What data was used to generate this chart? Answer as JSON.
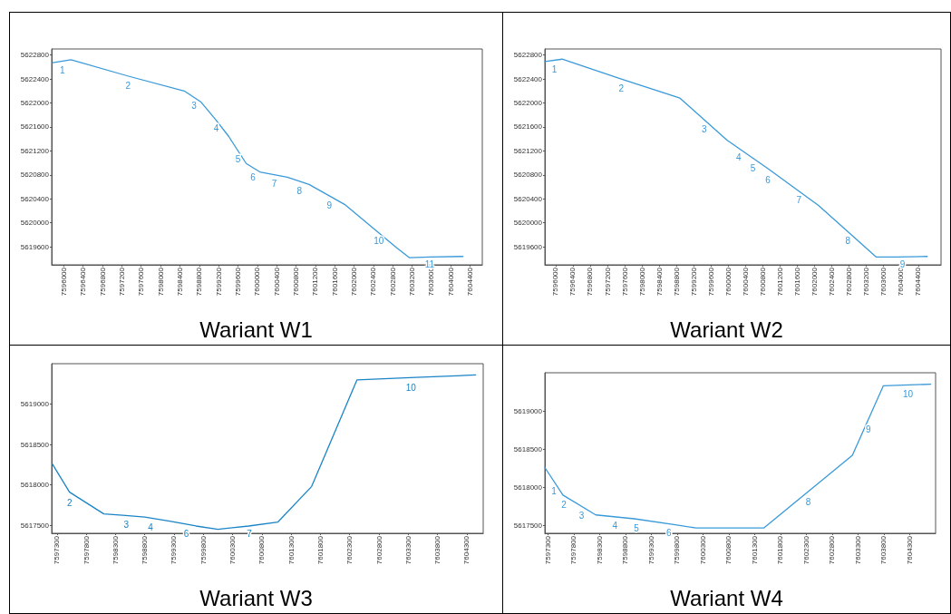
{
  "chart_data": [
    {
      "type": "line",
      "title": "Wariant W1",
      "color": "#3a9ad9",
      "x": [
        7595770,
        7596150,
        7597320,
        7598490,
        7598830,
        7599150,
        7599410,
        7599770,
        7600050,
        7600620,
        7601070,
        7601820,
        7602870,
        7603140,
        7603560,
        7604250
      ],
      "values": [
        5622670,
        5622720,
        5622450,
        5622200,
        5622020,
        5621710,
        5621440,
        5620990,
        5620850,
        5620760,
        5620640,
        5620300,
        5619590,
        5619420,
        5619430,
        5619440
      ],
      "xlim": [
        7595750,
        7604650
      ],
      "xticks": [
        7596000,
        7596400,
        7596800,
        7597200,
        7597600,
        7598000,
        7598400,
        7598800,
        7599200,
        7599600,
        7600000,
        7600400,
        7600800,
        7601200,
        7601600,
        7602000,
        7602400,
        7602800,
        7603200,
        7603600,
        7604000,
        7604400
      ],
      "ylim": [
        5619300,
        5622900
      ],
      "yticks": [
        5619600,
        5620000,
        5620400,
        5620800,
        5621200,
        5621600,
        5622000,
        5622400,
        5622800
      ],
      "annotations": [
        {
          "text": "1",
          "x": 7595970,
          "y": 5622650
        },
        {
          "text": "2",
          "x": 7597330,
          "y": 5622400
        },
        {
          "text": "3",
          "x": 7598690,
          "y": 5622060
        },
        {
          "text": "4",
          "x": 7599150,
          "y": 5621680
        },
        {
          "text": "5",
          "x": 7599600,
          "y": 5621170
        },
        {
          "text": "6",
          "x": 7599910,
          "y": 5620870
        },
        {
          "text": "7",
          "x": 7600350,
          "y": 5620760
        },
        {
          "text": "8",
          "x": 7600870,
          "y": 5620640
        },
        {
          "text": "9",
          "x": 7601490,
          "y": 5620390
        },
        {
          "text": "10",
          "x": 7602510,
          "y": 5619810
        },
        {
          "text": "11",
          "x": 7603560,
          "y": 5619410
        }
      ]
    },
    {
      "type": "line",
      "title": "Wariant W2",
      "color": "#3a9ad9",
      "x": [
        7595750,
        7596150,
        7597520,
        7598880,
        7599970,
        7600930,
        7602090,
        7603430,
        7603880,
        7604610
      ],
      "values": [
        5622690,
        5622730,
        5622400,
        5622080,
        5621380,
        5620900,
        5620290,
        5619430,
        5619430,
        5619440
      ],
      "xlim": [
        7595750,
        7604930
      ],
      "xticks": [
        7596000,
        7596400,
        7596800,
        7597200,
        7597600,
        7598000,
        7598400,
        7598800,
        7599200,
        7599600,
        7600000,
        7600400,
        7600800,
        7601200,
        7601600,
        7602000,
        7602400,
        7602800,
        7603200,
        7603600,
        7604000,
        7604400
      ],
      "ylim": [
        5619300,
        5622900
      ],
      "yticks": [
        5619600,
        5620000,
        5620400,
        5620800,
        5621200,
        5621600,
        5622000,
        5622400,
        5622800
      ],
      "annotations": [
        {
          "text": "1",
          "x": 7595970,
          "y": 5622670
        },
        {
          "text": "2",
          "x": 7597520,
          "y": 5622350
        },
        {
          "text": "3",
          "x": 7599440,
          "y": 5621670
        },
        {
          "text": "4",
          "x": 7600240,
          "y": 5621200
        },
        {
          "text": "5",
          "x": 7600570,
          "y": 5621020
        },
        {
          "text": "6",
          "x": 7600920,
          "y": 5620820
        },
        {
          "text": "7",
          "x": 7601640,
          "y": 5620480
        },
        {
          "text": "8",
          "x": 7602770,
          "y": 5619810
        },
        {
          "text": "9",
          "x": 7604040,
          "y": 5619410
        }
      ]
    },
    {
      "type": "line",
      "title": "Wariant W3",
      "color": "#1a84c6",
      "x": [
        7597220,
        7597515,
        7598100,
        7598475,
        7598800,
        7599225,
        7599675,
        7600050,
        7600575,
        7601075,
        7601650,
        7602425,
        7603425,
        7604450
      ],
      "values": [
        5618260,
        5617910,
        5617640,
        5617620,
        5617600,
        5617550,
        5617490,
        5617450,
        5617490,
        5617540,
        5617980,
        5619300,
        5619330,
        5619360
      ],
      "xlim": [
        7597210,
        7604580
      ],
      "xticks": [
        7597300,
        7597800,
        7598300,
        7598800,
        7599300,
        7599800,
        7600300,
        7600800,
        7601300,
        7601800,
        7602300,
        7602800,
        7603300,
        7603800,
        7604300
      ],
      "ylim": [
        5617400,
        5619500
      ],
      "yticks": [
        5617500,
        5618000,
        5618500,
        5619000
      ],
      "annotations": [
        {
          "text": "2",
          "x": 7597515,
          "y": 5617850
        },
        {
          "text": "3",
          "x": 7598485,
          "y": 5617580
        },
        {
          "text": "4",
          "x": 7598900,
          "y": 5617550
        },
        {
          "text": "6",
          "x": 7599510,
          "y": 5617470
        },
        {
          "text": "7",
          "x": 7600585,
          "y": 5617470
        },
        {
          "text": "10",
          "x": 7603345,
          "y": 5619280
        }
      ]
    },
    {
      "type": "line",
      "title": "Wariant W4",
      "color": "#3a9ad9",
      "x": [
        7597240,
        7597590,
        7598225,
        7598970,
        7599765,
        7600165,
        7601480,
        7603190,
        7603790,
        7604705
      ],
      "values": [
        5618260,
        5617900,
        5617640,
        5617590,
        5617510,
        5617470,
        5617470,
        5618420,
        5619330,
        5619350
      ],
      "xlim": [
        7597240,
        7604800
      ],
      "xticks": [
        7597300,
        7597800,
        7598300,
        7598800,
        7599300,
        7599800,
        7600300,
        7600800,
        7601300,
        7601800,
        7602300,
        7602800,
        7603300,
        7603800,
        7604300
      ],
      "ylim": [
        5617400,
        5619500
      ],
      "yticks": [
        5617500,
        5618000,
        5618500,
        5619000
      ],
      "annotations": [
        {
          "text": "1",
          "x": 7597414,
          "y": 5618040
        },
        {
          "text": "2",
          "x": 7597608,
          "y": 5617860
        },
        {
          "text": "3",
          "x": 7597950,
          "y": 5617710
        },
        {
          "text": "4",
          "x": 7598596,
          "y": 5617580
        },
        {
          "text": "5",
          "x": 7599013,
          "y": 5617550
        },
        {
          "text": "6",
          "x": 7599640,
          "y": 5617490
        },
        {
          "text": "8",
          "x": 7602336,
          "y": 5617890
        },
        {
          "text": "9",
          "x": 7603496,
          "y": 5618840
        },
        {
          "text": "10",
          "x": 7604266,
          "y": 5619300
        }
      ]
    }
  ]
}
